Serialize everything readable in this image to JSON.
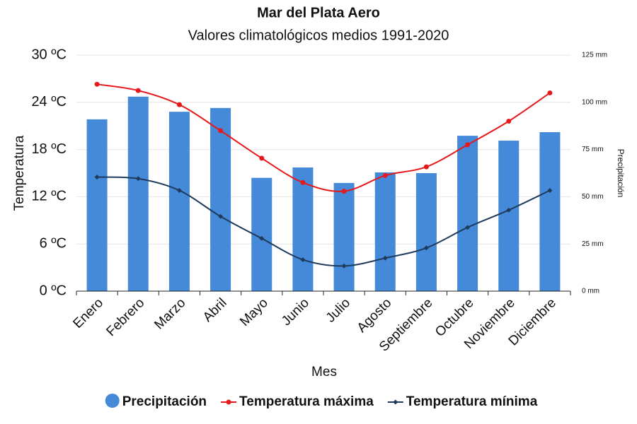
{
  "chart_data": {
    "type": "bar",
    "title": "Mar del Plata Aero",
    "subtitle": "Valores climatológicos medios 1991-2020",
    "x_label": "Mes",
    "y_label": "Temperatura",
    "y2_label": "Precipitación",
    "categories": [
      "Enero",
      "Febrero",
      "Marzo",
      "Abril",
      "Mayo",
      "Junio",
      "Julio",
      "Agosto",
      "Septiembre",
      "Octubre",
      "Noviembre",
      "Diciembre"
    ],
    "series": [
      {
        "name": "Precipitación",
        "type": "bar",
        "axis": "y2",
        "color": "#4589d9",
        "values": [
          91,
          103,
          95,
          97,
          60,
          65.5,
          57.3,
          62.9,
          62.5,
          82.3,
          79.7,
          84.2
        ]
      },
      {
        "name": "Temperatura máxima",
        "type": "line",
        "marker": "circle",
        "color": "#e41a1c",
        "values": [
          26.3,
          25.5,
          23.7,
          20.4,
          16.9,
          13.8,
          12.7,
          14.7,
          15.8,
          18.6,
          21.6,
          25.2
        ]
      },
      {
        "name": "Temperatura mínima",
        "type": "line",
        "marker": "diamond",
        "color": "#1f3b5c",
        "values": [
          14.5,
          14.3,
          12.8,
          9.5,
          6.7,
          4.0,
          3.2,
          4.2,
          5.5,
          8.1,
          10.3,
          12.8
        ]
      }
    ],
    "ylim": [
      0,
      30
    ],
    "yticks": [
      {
        "value": 0,
        "label": "0 ºC"
      },
      {
        "value": 6,
        "label": "6 ºC"
      },
      {
        "value": 12,
        "label": "12 ºC"
      },
      {
        "value": 18,
        "label": "18 ºC"
      },
      {
        "value": 24,
        "label": "24 ºC"
      },
      {
        "value": 30,
        "label": "30 ºC"
      }
    ],
    "y2lim": [
      0,
      125
    ],
    "y2ticks": [
      {
        "value": 0,
        "label": "0 mm"
      },
      {
        "value": 25,
        "label": "25 mm"
      },
      {
        "value": 50,
        "label": "50 mm"
      },
      {
        "value": 75,
        "label": "75 mm"
      },
      {
        "value": 100,
        "label": "100 mm"
      },
      {
        "value": 125,
        "label": "125 mm"
      }
    ],
    "grid": true,
    "legend": "bottom"
  }
}
